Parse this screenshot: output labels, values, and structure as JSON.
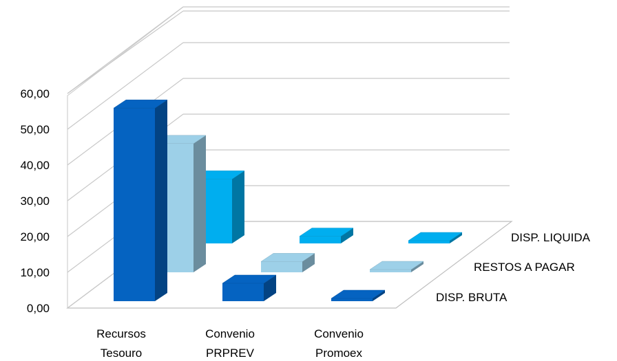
{
  "chart_data": {
    "type": "bar",
    "style": "3d-column",
    "categories": [
      [
        "Recursos",
        "Tesouro"
      ],
      [
        "Convenio",
        "PRPREV"
      ],
      [
        "Convenio",
        "Promoex"
      ]
    ],
    "series": [
      {
        "name": "DISP. BRUTA",
        "values": [
          54.0,
          5.0,
          0.5
        ],
        "color": "#0563C1"
      },
      {
        "name": "RESTOS A PAGAR",
        "values": [
          36.0,
          3.0,
          0.3
        ],
        "color": "#9DD0E8"
      },
      {
        "name": "DISP. LIQUIDA",
        "values": [
          18.0,
          2.0,
          0.2
        ],
        "color": "#00AEEF"
      }
    ],
    "y_ticks": [
      "0,00",
      "10,00",
      "20,00",
      "30,00",
      "40,00",
      "50,00",
      "60,00"
    ],
    "ylim": [
      0,
      60
    ],
    "grid": true,
    "legend": "series labels along depth axis (right)"
  }
}
